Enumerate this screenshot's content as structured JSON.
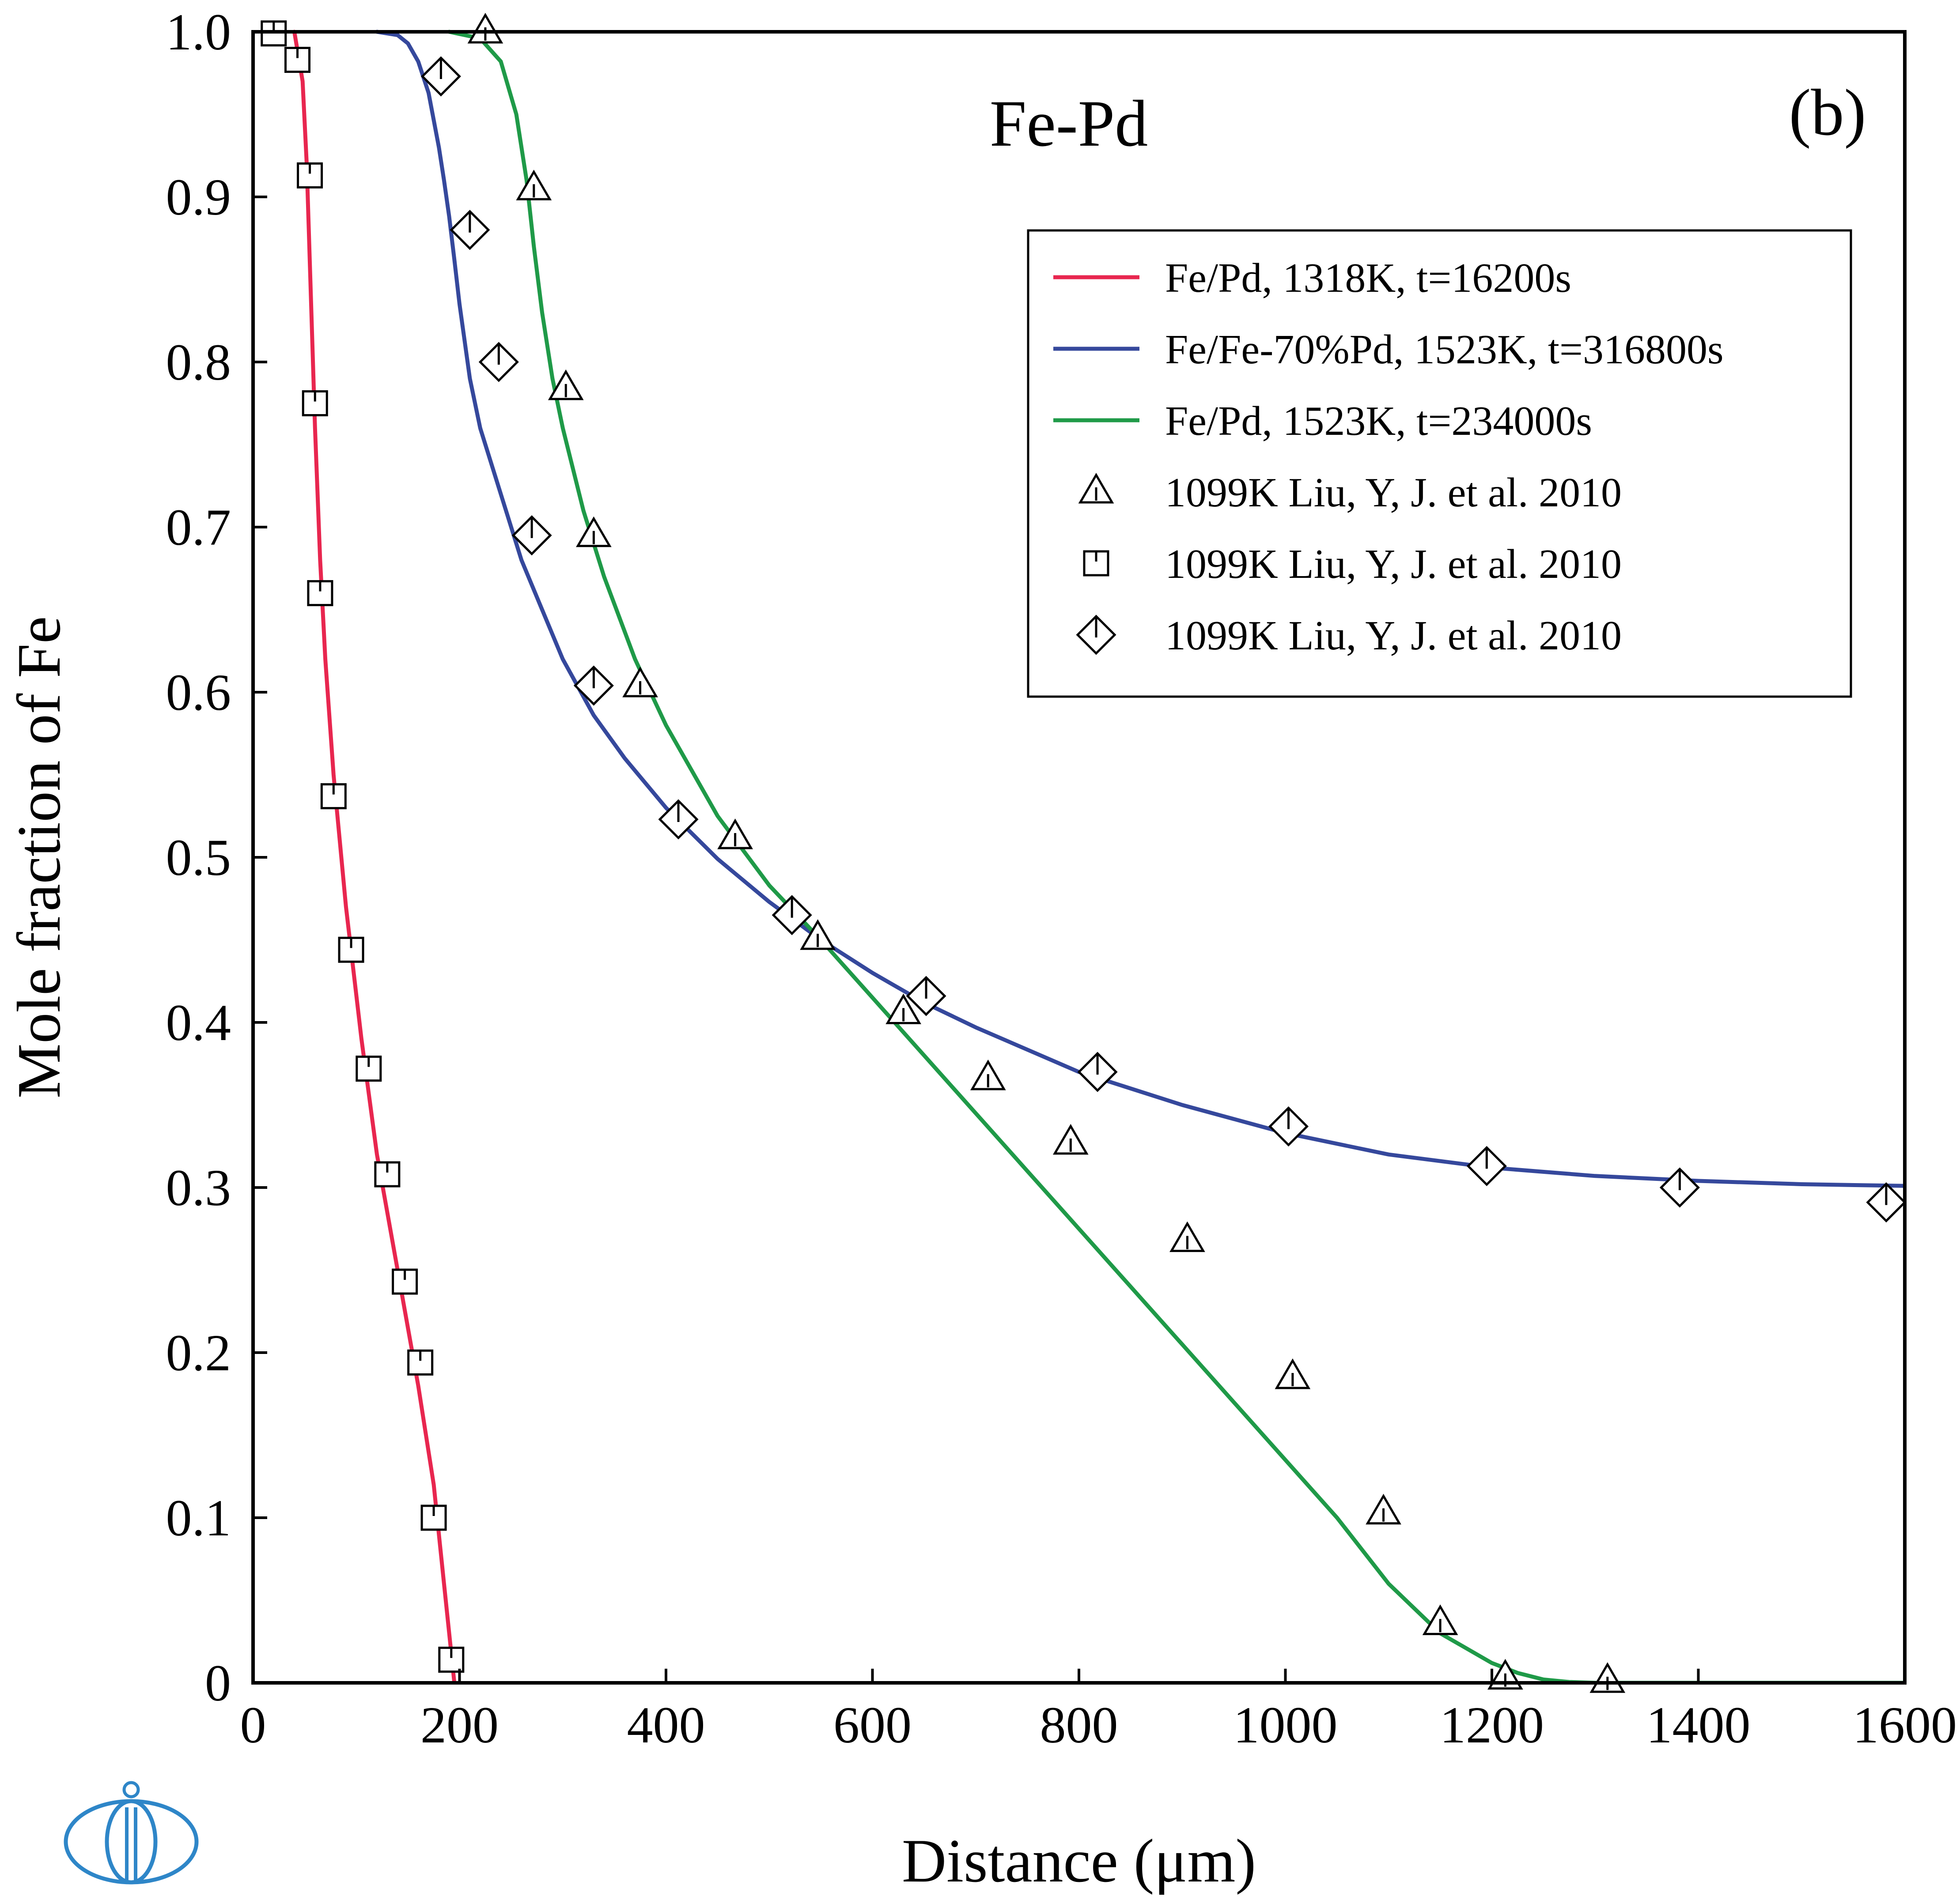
{
  "chart_data": {
    "type": "line",
    "title": "",
    "panel_title": "Fe-Pd",
    "panel_label": "(b)",
    "xlabel": "Distance (μm)",
    "ylabel": "Mole fraction of Fe",
    "xlim": [
      0,
      1600
    ],
    "ylim": [
      0,
      1.0
    ],
    "xticks": [
      0,
      200,
      400,
      600,
      800,
      1000,
      1200,
      1400,
      1600
    ],
    "xtick_labels": [
      "0",
      "200",
      "400",
      "600",
      "800",
      "1000",
      "1200",
      "1400",
      "1600"
    ],
    "yticks": [
      0,
      0.1,
      0.2,
      0.3,
      0.4,
      0.5,
      0.6,
      0.7,
      0.8,
      0.9,
      1.0
    ],
    "ytick_labels": [
      "0",
      "0.1",
      "0.2",
      "0.3",
      "0.4",
      "0.5",
      "0.6",
      "0.7",
      "0.8",
      "0.9",
      "1.0"
    ],
    "grid": false,
    "legend_position": "top-right",
    "series": [
      {
        "name": "Fe/Pd, 1318K, t=16200s",
        "kind": "line",
        "color": "#e8264f",
        "x": [
          40,
          48,
          52,
          56,
          60,
          65,
          70,
          78,
          90,
          105,
          120,
          140,
          160,
          175,
          185,
          190,
          195
        ],
        "y": [
          1.0,
          0.97,
          0.92,
          0.84,
          0.76,
          0.68,
          0.62,
          0.55,
          0.47,
          0.39,
          0.32,
          0.25,
          0.18,
          0.12,
          0.06,
          0.03,
          0.0
        ]
      },
      {
        "name": "Fe/Fe-70%Pd, 1523K, t=316800s",
        "kind": "line",
        "color": "#35489c",
        "x": [
          120,
          140,
          150,
          160,
          170,
          180,
          185,
          190,
          195,
          200,
          210,
          220,
          240,
          260,
          280,
          300,
          330,
          360,
          400,
          450,
          500,
          550,
          600,
          650,
          700,
          800,
          900,
          1000,
          1100,
          1200,
          1300,
          1400,
          1500,
          1600
        ],
        "y": [
          1.0,
          0.998,
          0.993,
          0.982,
          0.963,
          0.93,
          0.91,
          0.888,
          0.862,
          0.835,
          0.79,
          0.76,
          0.72,
          0.68,
          0.65,
          0.62,
          0.586,
          0.56,
          0.53,
          0.499,
          0.473,
          0.45,
          0.43,
          0.412,
          0.397,
          0.37,
          0.35,
          0.333,
          0.32,
          0.312,
          0.307,
          0.304,
          0.302,
          0.301
        ]
      },
      {
        "name": "Fe/Pd, 1523K, t=234000s",
        "kind": "line",
        "color": "#1f9a48",
        "x": [
          190,
          220,
          240,
          255,
          265,
          272,
          280,
          290,
          300,
          320,
          340,
          370,
          400,
          450,
          500,
          550,
          600,
          650,
          700,
          750,
          800,
          850,
          900,
          950,
          1000,
          1050,
          1100,
          1150,
          1200,
          1225,
          1250,
          1275,
          1300,
          1320,
          1600
        ],
        "y": [
          1.0,
          0.996,
          0.982,
          0.95,
          0.91,
          0.87,
          0.83,
          0.79,
          0.76,
          0.71,
          0.67,
          0.62,
          0.58,
          0.525,
          0.483,
          0.45,
          0.415,
          0.38,
          0.345,
          0.31,
          0.275,
          0.24,
          0.205,
          0.17,
          0.135,
          0.1,
          0.06,
          0.03,
          0.012,
          0.006,
          0.002,
          0.0005,
          0.0,
          0.0,
          0.0
        ]
      },
      {
        "name": "1099K Liu, Y, J. et al. 2010",
        "kind": "scatter",
        "marker": "triangle",
        "x": [
          225,
          272,
          303,
          330,
          375,
          467,
          547,
          630,
          712,
          792,
          905,
          1007,
          1095,
          1150,
          1213,
          1312
        ],
        "y": [
          1.0,
          0.905,
          0.784,
          0.695,
          0.604,
          0.512,
          0.451,
          0.406,
          0.366,
          0.327,
          0.268,
          0.185,
          0.103,
          0.036,
          0.003,
          0.001
        ]
      },
      {
        "name": "1099K Liu, Y, J. et al. 2010",
        "kind": "scatter",
        "marker": "square",
        "x": [
          20,
          43,
          55,
          60,
          65,
          78,
          95,
          112,
          130,
          147,
          162,
          175,
          192
        ],
        "y": [
          0.999,
          0.983,
          0.913,
          0.775,
          0.66,
          0.537,
          0.444,
          0.372,
          0.308,
          0.243,
          0.194,
          0.1,
          0.014
        ]
      },
      {
        "name": "1099K Liu, Y, J. et al. 2010",
        "kind": "scatter",
        "marker": "diamond",
        "x": [
          182,
          210,
          238,
          270,
          330,
          412,
          522,
          652,
          818,
          1003,
          1195,
          1382,
          1582
        ],
        "y": [
          0.973,
          0.88,
          0.8,
          0.695,
          0.604,
          0.523,
          0.465,
          0.416,
          0.37,
          0.337,
          0.313,
          0.3,
          0.291
        ]
      }
    ]
  },
  "logo": {
    "name": "publisher-logo",
    "color": "#2e86c8"
  }
}
